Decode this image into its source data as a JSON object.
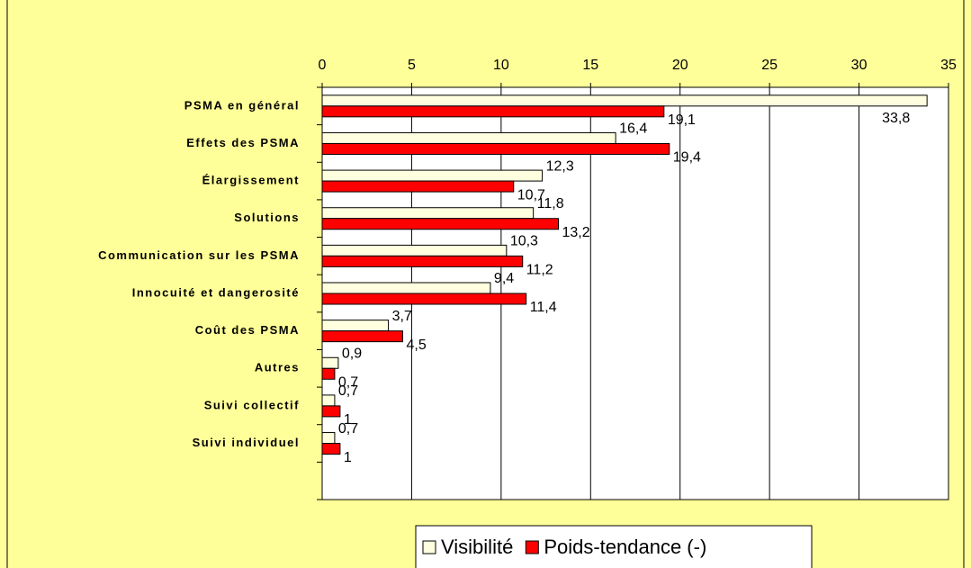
{
  "chart_data": {
    "type": "bar",
    "orientation": "horizontal",
    "categories": [
      "PSMA en général",
      "Effets des PSMA",
      "Élargissement",
      "Solutions",
      "Communication sur les PSMA",
      "Innocuité et dangerosité",
      "Coût des PSMA",
      "Autres",
      "Suivi collectif",
      "Suivi individuel",
      null
    ],
    "series": [
      {
        "name": "Visibilité",
        "color": "#FFFFE0",
        "values": [
          33.8,
          16.4,
          12.3,
          11.8,
          10.3,
          9.4,
          3.7,
          0.9,
          0.7,
          0.7,
          null
        ],
        "value_labels": [
          "33,8",
          "16,4",
          "12,3",
          "11,8",
          "10,3",
          "9,4",
          "3,7",
          "0,9",
          "0,7",
          "0,7",
          null
        ]
      },
      {
        "name": "Poids-tendance (-)",
        "color": "#FF0000",
        "values": [
          19.1,
          19.4,
          10.7,
          13.2,
          11.2,
          11.4,
          4.5,
          0.7,
          1,
          1,
          null
        ],
        "value_labels": [
          "19,1",
          "19,4",
          "10,7",
          "13,2",
          "11,2",
          "11,4",
          "4,5",
          "0,7",
          "1",
          "1",
          null
        ]
      }
    ],
    "xlim": [
      0,
      35
    ],
    "xticks": [
      0,
      5,
      10,
      15,
      20,
      25,
      30,
      35
    ],
    "grid": true,
    "legend": "bottom"
  }
}
